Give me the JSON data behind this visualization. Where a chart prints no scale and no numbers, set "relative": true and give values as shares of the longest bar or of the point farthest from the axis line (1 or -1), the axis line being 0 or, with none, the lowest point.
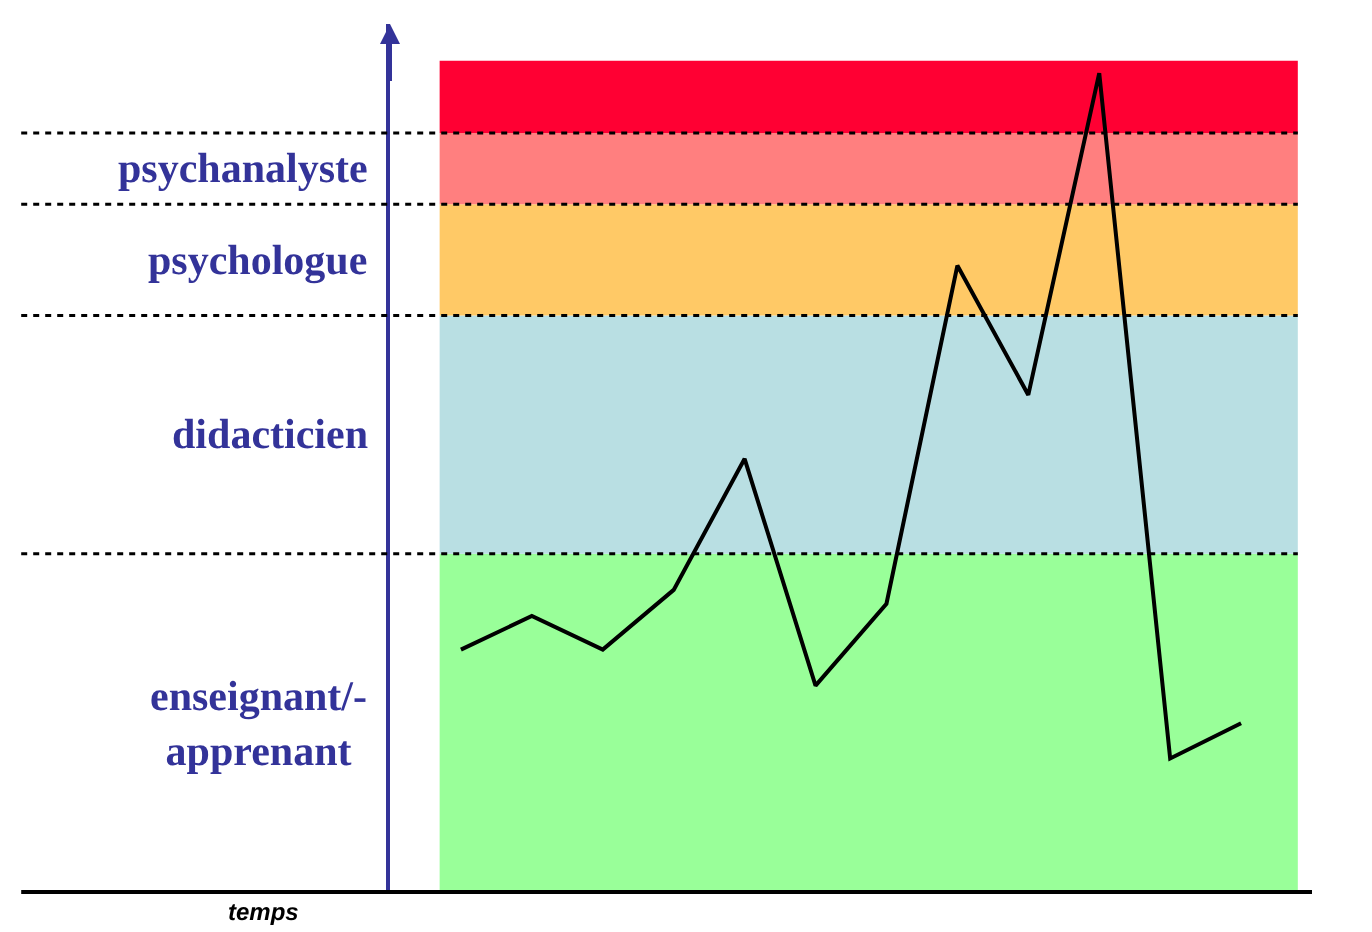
{
  "chart_data": {
    "type": "line",
    "relative": true,
    "annotations": [
      "temps"
    ],
    "categories": [
      null,
      null,
      null,
      null,
      null,
      null,
      null,
      null,
      null,
      null,
      null,
      null
    ],
    "series": [
      {
        "color": "#000000",
        "values": [
          0.296,
          0.337,
          0.296,
          0.369,
          0.529,
          0.252,
          0.352,
          0.765,
          0.607,
          1,
          0.163,
          0.206
        ]
      }
    ],
    "bands": [
      {
        "axis": "y",
        "from": 0,
        "to": 0.413,
        "label": "enseignant/-\napprenant",
        "color": "#99ff99"
      },
      {
        "axis": "y",
        "from": 0.413,
        "to": 0.704,
        "label": "didacticien",
        "color": "#b9dfe3"
      },
      {
        "axis": "y",
        "from": 0.704,
        "to": 0.84,
        "label": "psychologue",
        "color": "#ffc966"
      },
      {
        "axis": "y",
        "from": 0.84,
        "to": 0.927,
        "label": "psychanalyste",
        "color": "#ff7f7f"
      },
      {
        "axis": "y",
        "from": 0.927,
        "to": 1.015,
        "label": null,
        "color": "#ff0033"
      }
    ],
    "ref_lines": [
      {
        "axis": "y",
        "value": 0.413,
        "label": null,
        "line_style": "dotted",
        "color": "#000000"
      },
      {
        "axis": "y",
        "value": 0.704,
        "label": null,
        "line_style": "dotted",
        "color": "#000000"
      },
      {
        "axis": "y",
        "value": 0.84,
        "label": null,
        "line_style": "dotted",
        "color": "#000000"
      },
      {
        "axis": "y",
        "value": 0.927,
        "label": null,
        "line_style": "dotted",
        "color": "#000000"
      }
    ],
    "grid": false,
    "marker": "none",
    "line_style": "solid"
  }
}
